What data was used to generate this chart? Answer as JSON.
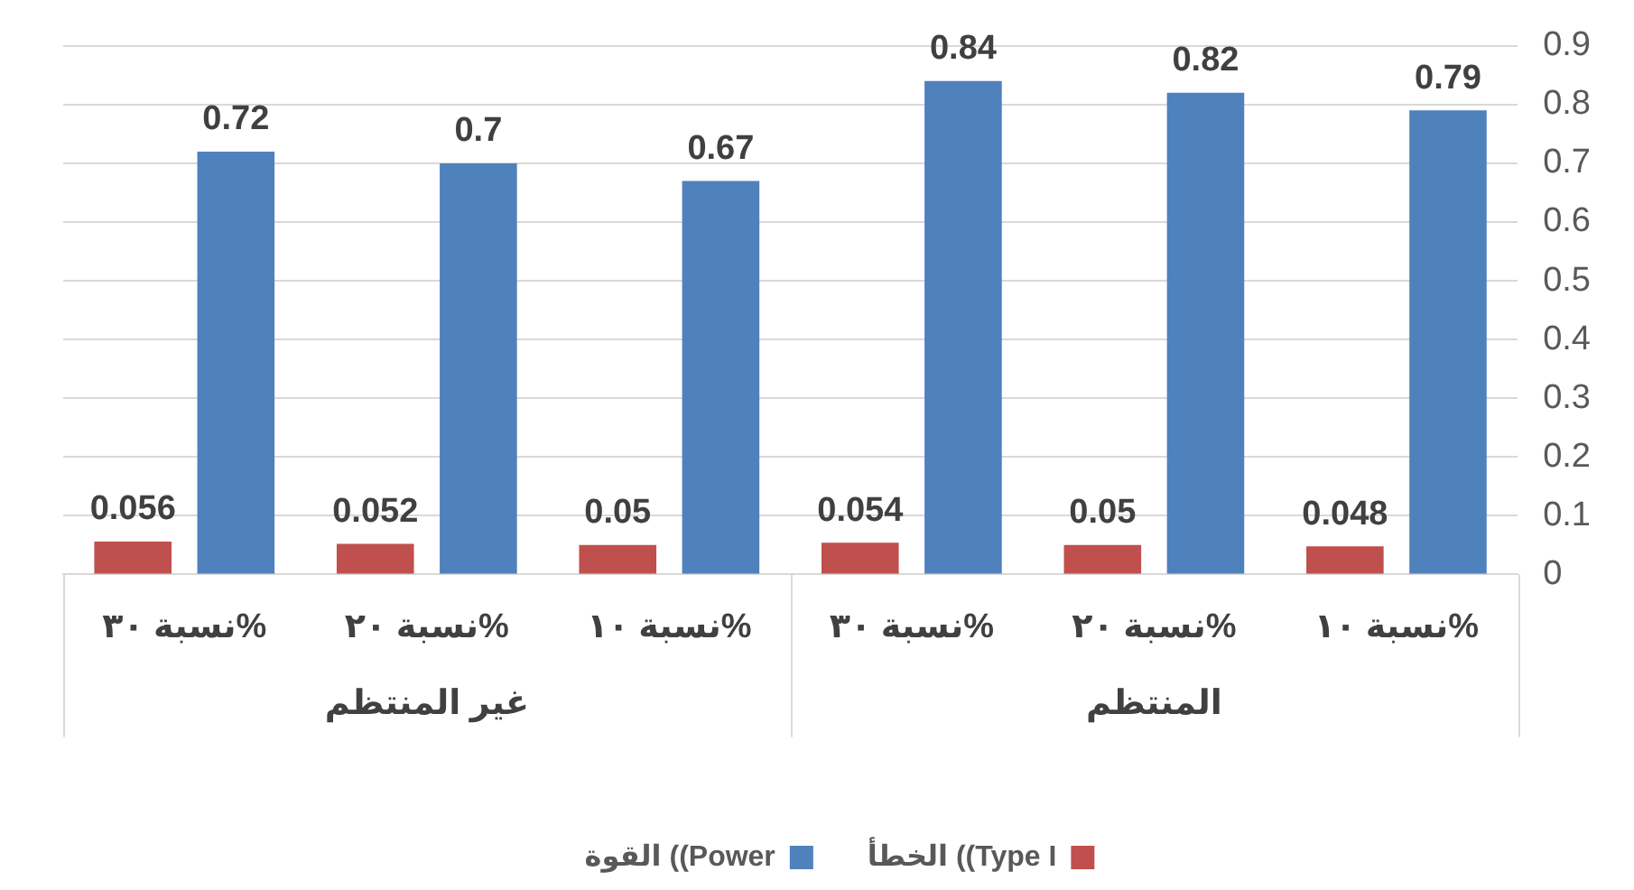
{
  "chart_data": {
    "type": "bar",
    "categories": [
      "نسبة ٣٠%",
      "نسبة ٢٠%",
      "نسبة ١٠%",
      "نسبة ٣٠%",
      "نسبة ٢٠%",
      "نسبة ١٠%"
    ],
    "series": [
      {
        "name": "الخطأ ((Type I",
        "color": "#c0504d",
        "values": [
          0.056,
          0.052,
          0.05,
          0.054,
          0.05,
          0.048
        ]
      },
      {
        "name": "القوة ((Power",
        "color": "#4f81bd",
        "values": [
          0.72,
          0.7,
          0.67,
          0.84,
          0.82,
          0.79
        ]
      }
    ],
    "ylim": [
      0,
      0.9
    ],
    "yticks": [
      0,
      0.1,
      0.2,
      0.3,
      0.4,
      0.5,
      0.6,
      0.7,
      0.8,
      0.9
    ],
    "grid": "y",
    "legend": "bottom",
    "data_labels": true,
    "annotations": [
      "غير المنتظم",
      "المنتظم"
    ]
  }
}
